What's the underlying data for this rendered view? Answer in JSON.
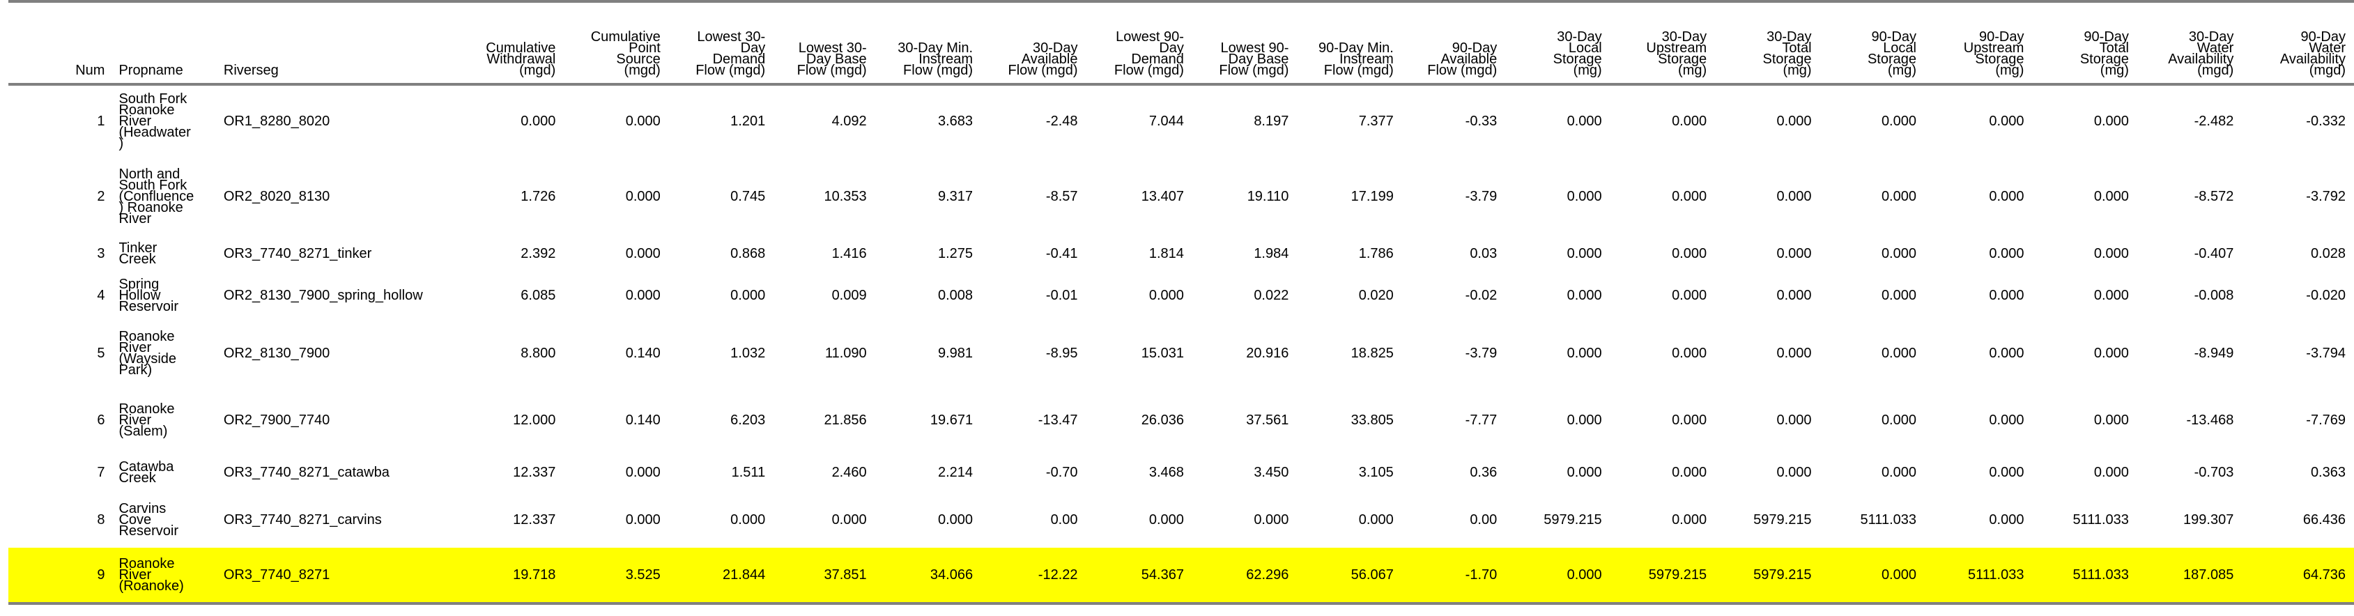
{
  "table": {
    "headers": [
      "Num",
      "Propname",
      "Riverseg",
      "Cumulative Withdrawal (mgd)",
      "Cumulative Point Source (mgd)",
      "Lowest 30-Day Demand Flow (mgd)",
      "Lowest 30-Day Base Flow (mgd)",
      "30-Day Min. Instream Flow (mgd)",
      "30-Day Available Flow (mgd)",
      "Lowest 90-Day Demand Flow (mgd)",
      "Lowest 90-Day Base Flow (mgd)",
      "90-Day Min. Instream Flow (mgd)",
      "90-Day Available Flow (mgd)",
      "30-Day Local Storage (mg)",
      "30-Day Upstream Storage (mg)",
      "30-Day Total Storage (mg)",
      "90-Day Local Storage (mg)",
      "90-Day Upstream Storage (mg)",
      "90-Day Total Storage (mg)",
      "30-Day Water Availability (mgd)",
      "90-Day Water Availability (mgd)"
    ],
    "rows": [
      [
        "1",
        "South Fork Roanoke River (Headwater)",
        "OR1_8280_8020",
        "0.000",
        "0.000",
        "1.201",
        "4.092",
        "3.683",
        "-2.48",
        "7.044",
        "8.197",
        "7.377",
        "-0.33",
        "0.000",
        "0.000",
        "0.000",
        "0.000",
        "0.000",
        "0.000",
        "-2.482",
        "-0.332"
      ],
      [
        "2",
        "North and South Fork (Confluence) Roanoke River",
        "OR2_8020_8130",
        "1.726",
        "0.000",
        "0.745",
        "10.353",
        "9.317",
        "-8.57",
        "13.407",
        "19.110",
        "17.199",
        "-3.79",
        "0.000",
        "0.000",
        "0.000",
        "0.000",
        "0.000",
        "0.000",
        "-8.572",
        "-3.792"
      ],
      [
        "3",
        "Tinker Creek",
        "OR3_7740_8271_tinker",
        "2.392",
        "0.000",
        "0.868",
        "1.416",
        "1.275",
        "-0.41",
        "1.814",
        "1.984",
        "1.786",
        "0.03",
        "0.000",
        "0.000",
        "0.000",
        "0.000",
        "0.000",
        "0.000",
        "-0.407",
        "0.028"
      ],
      [
        "4",
        "Spring Hollow Reservoir",
        "OR2_8130_7900_spring_hollow",
        "6.085",
        "0.000",
        "0.000",
        "0.009",
        "0.008",
        "-0.01",
        "0.000",
        "0.022",
        "0.020",
        "-0.02",
        "0.000",
        "0.000",
        "0.000",
        "0.000",
        "0.000",
        "0.000",
        "-0.008",
        "-0.020"
      ],
      [
        "5",
        "Roanoke River (Wayside Park)",
        "OR2_8130_7900",
        "8.800",
        "0.140",
        "1.032",
        "11.090",
        "9.981",
        "-8.95",
        "15.031",
        "20.916",
        "18.825",
        "-3.79",
        "0.000",
        "0.000",
        "0.000",
        "0.000",
        "0.000",
        "0.000",
        "-8.949",
        "-3.794"
      ],
      [
        "6",
        "Roanoke River (Salem)",
        "OR2_7900_7740",
        "12.000",
        "0.140",
        "6.203",
        "21.856",
        "19.671",
        "-13.47",
        "26.036",
        "37.561",
        "33.805",
        "-7.77",
        "0.000",
        "0.000",
        "0.000",
        "0.000",
        "0.000",
        "0.000",
        "-13.468",
        "-7.769"
      ],
      [
        "7",
        "Catawba Creek",
        "OR3_7740_8271_catawba",
        "12.337",
        "0.000",
        "1.511",
        "2.460",
        "2.214",
        "-0.70",
        "3.468",
        "3.450",
        "3.105",
        "0.36",
        "0.000",
        "0.000",
        "0.000",
        "0.000",
        "0.000",
        "0.000",
        "-0.703",
        "0.363"
      ],
      [
        "8",
        "Carvins Cove Reservoir",
        "OR3_7740_8271_carvins",
        "12.337",
        "0.000",
        "0.000",
        "0.000",
        "0.000",
        "0.00",
        "0.000",
        "0.000",
        "0.000",
        "0.00",
        "5979.215",
        "0.000",
        "5979.215",
        "5111.033",
        "0.000",
        "5111.033",
        "199.307",
        "66.436"
      ],
      [
        "9",
        "Roanoke River (Roanoke)",
        "OR3_7740_8271",
        "19.718",
        "3.525",
        "21.844",
        "37.851",
        "34.066",
        "-12.22",
        "54.367",
        "62.296",
        "56.067",
        "-1.70",
        "0.000",
        "5979.215",
        "5979.215",
        "0.000",
        "5111.033",
        "5111.033",
        "187.085",
        "64.736"
      ]
    ],
    "highlight_row": 9,
    "highlight_color": "#ffff00",
    "rule_color": "#808080"
  }
}
